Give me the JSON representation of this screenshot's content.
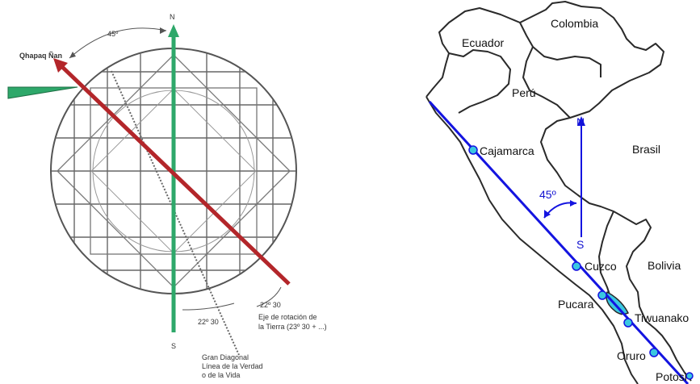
{
  "diagram": {
    "north": "N",
    "south": "S",
    "angle_top": "45º",
    "qhapaq": "Qhapaq Ñan",
    "angle_right": "22º 30",
    "angle_bottom": "22º 30",
    "axis_line1": "Eje de rotación de",
    "axis_line2": "la Tierra (23º 30 + ...)",
    "gran_line1": "Gran Diagonal",
    "gran_line2": "Línea de la Verdad",
    "gran_line3": "o de la Vida"
  },
  "map": {
    "countries": {
      "colombia": "Colombia",
      "ecuador": "Ecuador",
      "peru": "Perú",
      "brasil": "Brasil",
      "bolivia": "Bolivia"
    },
    "north": "N",
    "south": "S",
    "angle": "45º",
    "sites": {
      "cajamarca": "Cajamarca",
      "cuzco": "Cuzco",
      "pucara": "Pucara",
      "tiwuanako": "Tiwuanako",
      "oruro": "Oruro",
      "potosi": "Potosi"
    }
  },
  "colors": {
    "red_axis": "#b3262a",
    "green_axis": "#2ea86a",
    "blue_line": "#1414e0",
    "site_marker": "#3ac7e0",
    "border": "#2a2a2a"
  }
}
